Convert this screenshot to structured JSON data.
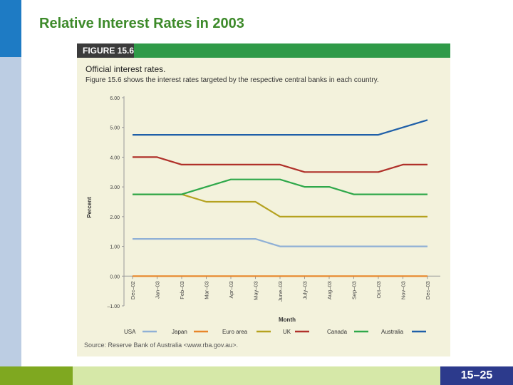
{
  "slide": {
    "title": "Relative Interest Rates in 2003",
    "page_number": "15–25"
  },
  "figure": {
    "label": "FIGURE 15.6",
    "heading": "Official interest rates.",
    "caption": "Figure 15.6 shows the interest rates targeted by the respective central banks in each country.",
    "source": "Source: Reserve Bank of Australia <www.rba.gov.au>."
  },
  "colors": {
    "title": "#3d8a2a",
    "header_bar": "#2f9a48",
    "panel_bg": "#f3f2dc"
  },
  "chart_data": {
    "type": "line",
    "title": "",
    "xlabel": "Month",
    "ylabel": "Percent",
    "ylim": [
      -1,
      6
    ],
    "yticks": [
      "6.00",
      "5.00",
      "4.00",
      "3.00",
      "2.00",
      "1.00",
      "0.00",
      "–1.00"
    ],
    "categories": [
      "Dec–02",
      "Jan–03",
      "Feb–03",
      "Mar–03",
      "Apr–03",
      "May–03",
      "June–03",
      "July–03",
      "Aug–03",
      "Sep–03",
      "Oct–03",
      "Nov–03",
      "Dec–03"
    ],
    "legend_position": "bottom",
    "series": [
      {
        "name": "USA",
        "color": "#8fb0d6",
        "values": [
          1.25,
          1.25,
          1.25,
          1.25,
          1.25,
          1.25,
          1.0,
          1.0,
          1.0,
          1.0,
          1.0,
          1.0,
          1.0
        ]
      },
      {
        "name": "Japan",
        "color": "#e8862a",
        "values": [
          0.0,
          0.0,
          0.0,
          0.0,
          0.0,
          0.0,
          0.0,
          0.0,
          0.0,
          0.0,
          0.0,
          0.0,
          0.0
        ]
      },
      {
        "name": "Euro area",
        "color": "#b5a21f",
        "values": [
          2.75,
          2.75,
          2.75,
          2.5,
          2.5,
          2.5,
          2.0,
          2.0,
          2.0,
          2.0,
          2.0,
          2.0,
          2.0
        ]
      },
      {
        "name": "UK",
        "color": "#b0312a",
        "values": [
          4.0,
          4.0,
          3.75,
          3.75,
          3.75,
          3.75,
          3.75,
          3.5,
          3.5,
          3.5,
          3.5,
          3.75,
          3.75
        ]
      },
      {
        "name": "Canada",
        "color": "#2ea84a",
        "values": [
          2.75,
          2.75,
          2.75,
          3.0,
          3.25,
          3.25,
          3.25,
          3.0,
          3.0,
          2.75,
          2.75,
          2.75,
          2.75
        ]
      },
      {
        "name": "Australia",
        "color": "#1e5fa8",
        "values": [
          4.75,
          4.75,
          4.75,
          4.75,
          4.75,
          4.75,
          4.75,
          4.75,
          4.75,
          4.75,
          4.75,
          5.0,
          5.25
        ]
      }
    ]
  }
}
